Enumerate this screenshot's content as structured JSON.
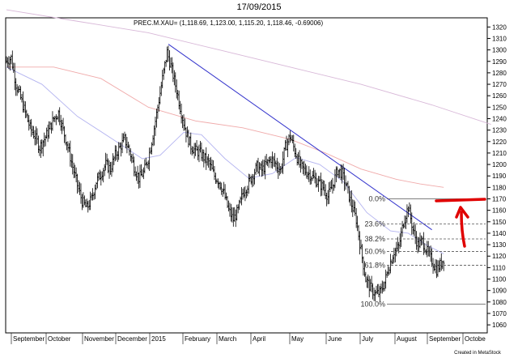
{
  "header": {
    "date": "17/09/2015"
  },
  "chart_data": {
    "type": "ohlc",
    "quote_title": "PREC.M.XAU= (1,118.69, 1,123.00, 1,115.20, 1,118.46, -0.69006)",
    "credit": "Created in MetaStock",
    "ylim": [
      1053,
      1328
    ],
    "y_ticks": [
      1060,
      1070,
      1080,
      1090,
      1100,
      1110,
      1120,
      1130,
      1140,
      1150,
      1160,
      1170,
      1180,
      1190,
      1200,
      1210,
      1220,
      1230,
      1240,
      1250,
      1260,
      1270,
      1280,
      1290,
      1300,
      1310,
      1320
    ],
    "months": [
      "September",
      "October",
      "November",
      "December",
      "2015",
      "February",
      "March",
      "April",
      "May",
      "June",
      "July",
      "August",
      "September",
      "Octobe"
    ],
    "price_path": [
      [
        0,
        1290
      ],
      [
        4,
        1293
      ],
      [
        8,
        1270
      ],
      [
        12,
        1258
      ],
      [
        16,
        1245
      ],
      [
        20,
        1232
      ],
      [
        24,
        1225
      ],
      [
        28,
        1215
      ],
      [
        32,
        1222
      ],
      [
        36,
        1230
      ],
      [
        40,
        1240
      ],
      [
        44,
        1245
      ],
      [
        48,
        1230
      ],
      [
        52,
        1215
      ],
      [
        56,
        1198
      ],
      [
        60,
        1182
      ],
      [
        64,
        1168
      ],
      [
        68,
        1162
      ],
      [
        72,
        1170
      ],
      [
        76,
        1185
      ],
      [
        80,
        1192
      ],
      [
        84,
        1200
      ],
      [
        88,
        1196
      ],
      [
        92,
        1208
      ],
      [
        96,
        1215
      ],
      [
        100,
        1222
      ],
      [
        104,
        1212
      ],
      [
        108,
        1198
      ],
      [
        112,
        1188
      ],
      [
        116,
        1193
      ],
      [
        120,
        1205
      ],
      [
        124,
        1226
      ],
      [
        128,
        1250
      ],
      [
        132,
        1275
      ],
      [
        136,
        1298
      ],
      [
        140,
        1282
      ],
      [
        144,
        1265
      ],
      [
        148,
        1245
      ],
      [
        152,
        1228
      ],
      [
        156,
        1216
      ],
      [
        160,
        1212
      ],
      [
        164,
        1210
      ],
      [
        168,
        1205
      ],
      [
        172,
        1200
      ],
      [
        176,
        1190
      ],
      [
        180,
        1185
      ],
      [
        184,
        1175
      ],
      [
        188,
        1160
      ],
      [
        192,
        1152
      ],
      [
        196,
        1160
      ],
      [
        200,
        1175
      ],
      [
        204,
        1182
      ],
      [
        208,
        1190
      ],
      [
        212,
        1198
      ],
      [
        216,
        1195
      ],
      [
        220,
        1200
      ],
      [
        224,
        1205
      ],
      [
        228,
        1200
      ],
      [
        232,
        1195
      ],
      [
        236,
        1215
      ],
      [
        240,
        1225
      ],
      [
        244,
        1212
      ],
      [
        248,
        1200
      ],
      [
        252,
        1195
      ],
      [
        256,
        1192
      ],
      [
        260,
        1188
      ],
      [
        264,
        1184
      ],
      [
        268,
        1180
      ],
      [
        272,
        1172
      ],
      [
        276,
        1182
      ],
      [
        280,
        1195
      ],
      [
        284,
        1192
      ],
      [
        288,
        1180
      ],
      [
        292,
        1165
      ],
      [
        296,
        1152
      ],
      [
        300,
        1125
      ],
      [
        304,
        1100
      ],
      [
        308,
        1092
      ],
      [
        312,
        1087
      ],
      [
        316,
        1088
      ],
      [
        320,
        1097
      ],
      [
        324,
        1112
      ],
      [
        328,
        1124
      ],
      [
        332,
        1128
      ],
      [
        336,
        1150
      ],
      [
        340,
        1163
      ],
      [
        344,
        1143
      ],
      [
        348,
        1130
      ],
      [
        352,
        1133
      ],
      [
        356,
        1124
      ],
      [
        360,
        1116
      ],
      [
        364,
        1108
      ],
      [
        368,
        1114
      ],
      [
        370,
        1118
      ]
    ],
    "series": [
      {
        "name": "",
        "type": "line",
        "color": "#f0aaaa",
        "points": [
          [
            0,
            1285
          ],
          [
            40,
            1285
          ],
          [
            80,
            1275
          ],
          [
            120,
            1250
          ],
          [
            160,
            1238
          ],
          [
            200,
            1232
          ],
          [
            240,
            1222
          ],
          [
            270,
            1210
          ],
          [
            300,
            1196
          ],
          [
            330,
            1187
          ],
          [
            350,
            1183
          ],
          [
            370,
            1180
          ]
        ]
      },
      {
        "name": "",
        "type": "line",
        "color": "#b4b4f0",
        "points": [
          [
            0,
            1285
          ],
          [
            30,
            1270
          ],
          [
            60,
            1242
          ],
          [
            90,
            1222
          ],
          [
            115,
            1205
          ],
          [
            130,
            1208
          ],
          [
            150,
            1228
          ],
          [
            165,
            1226
          ],
          [
            185,
            1205
          ],
          [
            205,
            1188
          ],
          [
            225,
            1192
          ],
          [
            245,
            1206
          ],
          [
            265,
            1200
          ],
          [
            285,
            1185
          ],
          [
            305,
            1158
          ],
          [
            325,
            1142
          ],
          [
            340,
            1140
          ],
          [
            355,
            1130
          ],
          [
            370,
            1122
          ]
        ]
      },
      {
        "name": "",
        "type": "line",
        "color": "#d8b8d8",
        "points": [
          [
            0,
            1335
          ],
          [
            60,
            1325
          ],
          [
            120,
            1315
          ],
          [
            180,
            1300
          ],
          [
            240,
            1285
          ],
          [
            300,
            1270
          ],
          [
            360,
            1252
          ],
          [
            410,
            1235
          ]
        ]
      },
      {
        "name": "",
        "type": "line",
        "color": "#3333cc",
        "points": [
          [
            137,
            1305
          ],
          [
            360,
            1143
          ]
        ]
      }
    ],
    "fibonacci": [
      {
        "label": "0.0%",
        "value": 1170
      },
      {
        "label": "23.6%",
        "value": 1148
      },
      {
        "label": "38.2%",
        "value": 1135
      },
      {
        "label": "50.0%",
        "value": 1124
      },
      {
        "label": "61.8%",
        "value": 1112
      },
      {
        "label": "100.0%",
        "value": 1078
      }
    ]
  }
}
